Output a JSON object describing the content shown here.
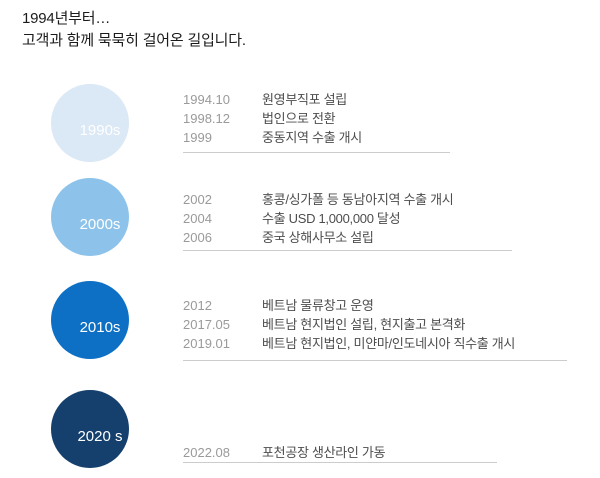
{
  "header": {
    "title_line1": "1994년부터…",
    "title_line2": "고객과 함께 묵묵히 걸어온 길입니다."
  },
  "timeline": {
    "sections": [
      {
        "decade": "1990s",
        "circle_color": "#dbe8f5",
        "events": [
          {
            "date": "1994.10",
            "description": "원영부직포 설립"
          },
          {
            "date": "1998.12",
            "description": "법인으로 전환"
          },
          {
            "date": "1999",
            "description": "중동지역 수출 개시"
          }
        ]
      },
      {
        "decade": "2000s",
        "circle_color": "#8dc3ea",
        "events": [
          {
            "date": "2002",
            "description": "홍콩/싱가폴 등 동남아지역 수출 개시"
          },
          {
            "date": "2004",
            "description": "수출 USD 1,000,000 달성"
          },
          {
            "date": "2006",
            "description": "중국 상해사무소 설립"
          }
        ]
      },
      {
        "decade": "2010s",
        "circle_color": "#0e70c4",
        "events": [
          {
            "date": "2012",
            "description": "베트남 물류창고 운영"
          },
          {
            "date": "2017.05",
            "description": "베트남 현지법인 설립, 현지출고 본격화"
          },
          {
            "date": "2019.01",
            "description": "베트남 현지법인, 미얀마/인도네시아 직수출 개시"
          }
        ]
      },
      {
        "decade": "2020 s",
        "circle_color": "#15406d",
        "events": [
          {
            "date": "2022.08",
            "description": "포천공장 생산라인 가동"
          }
        ]
      }
    ]
  },
  "divider_color": "#cccccc"
}
